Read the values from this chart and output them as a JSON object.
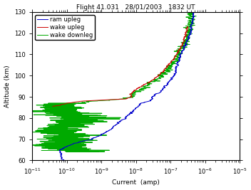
{
  "title": "Flight 41.031   28/01/2003   1832 UT",
  "xlabel": "Current  (amp)",
  "ylabel": "Altitude (km)",
  "ylim": [
    60,
    130
  ],
  "yticks": [
    60,
    70,
    80,
    90,
    100,
    110,
    120,
    130
  ],
  "legend_labels": [
    "ram upleg",
    "wake upleg",
    "wake downleg"
  ],
  "colors": [
    "#0000cc",
    "#cc0000",
    "#00aa00"
  ],
  "line_width": 0.7,
  "title_fontsize": 6.5,
  "label_fontsize": 6.5,
  "tick_fontsize": 6.0,
  "legend_fontsize": 6.0
}
